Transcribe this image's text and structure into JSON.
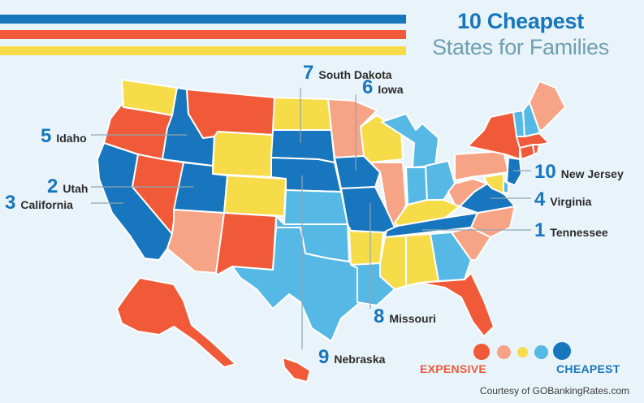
{
  "colors": {
    "background": "#e9f4fa",
    "stripe_blue": "#1776bd",
    "stripe_red": "#f05a39",
    "stripe_yellow": "#f7dc4a",
    "title_blue": "#1776bd",
    "subtitle_gray": "#6f9fb3",
    "text_blue": "#1776bd",
    "text_dark": "#2b2b2b",
    "leader_line": "#8fa6b2",
    "state_border": "#ffffff",
    "expensive_label": "#f05a39",
    "cheapest_label": "#1776bd"
  },
  "header": {
    "title": "10 Cheapest",
    "subtitle": "States for Families"
  },
  "scale": [
    {
      "level": "most-expensive",
      "color": "#f05a39"
    },
    {
      "level": "expensive",
      "color": "#f7a386"
    },
    {
      "level": "average",
      "color": "#f7dc4a"
    },
    {
      "level": "cheap",
      "color": "#55b8e5"
    },
    {
      "level": "cheapest",
      "color": "#1776bd"
    }
  ],
  "legend": {
    "expensive_label": "EXPENSIVE",
    "cheapest_label": "CHEAPEST"
  },
  "rankings": [
    {
      "rank": "1",
      "state": "Tennessee"
    },
    {
      "rank": "2",
      "state": "Utah"
    },
    {
      "rank": "3",
      "state": "California"
    },
    {
      "rank": "4",
      "state": "Virginia"
    },
    {
      "rank": "5",
      "state": "Idaho"
    },
    {
      "rank": "6",
      "state": "Iowa"
    },
    {
      "rank": "7",
      "state": "South Dakota"
    },
    {
      "rank": "8",
      "state": "Missouri"
    },
    {
      "rank": "9",
      "state": "Nebraska"
    },
    {
      "rank": "10",
      "state": "New Jersey"
    }
  ],
  "states": [
    {
      "id": "WA",
      "level": "average"
    },
    {
      "id": "OR",
      "level": "most-expensive"
    },
    {
      "id": "CA",
      "level": "cheapest"
    },
    {
      "id": "ID",
      "level": "cheapest"
    },
    {
      "id": "NV",
      "level": "most-expensive"
    },
    {
      "id": "MT",
      "level": "most-expensive"
    },
    {
      "id": "WY",
      "level": "average"
    },
    {
      "id": "UT",
      "level": "cheapest"
    },
    {
      "id": "AZ",
      "level": "expensive"
    },
    {
      "id": "CO",
      "level": "average"
    },
    {
      "id": "NM",
      "level": "most-expensive"
    },
    {
      "id": "ND",
      "level": "average"
    },
    {
      "id": "SD",
      "level": "cheapest"
    },
    {
      "id": "NE",
      "level": "cheapest"
    },
    {
      "id": "KS",
      "level": "cheap"
    },
    {
      "id": "OK",
      "level": "cheap"
    },
    {
      "id": "TX",
      "level": "cheap"
    },
    {
      "id": "MN",
      "level": "expensive"
    },
    {
      "id": "IA",
      "level": "cheapest"
    },
    {
      "id": "MO",
      "level": "cheapest"
    },
    {
      "id": "AR",
      "level": "average"
    },
    {
      "id": "LA",
      "level": "cheap"
    },
    {
      "id": "WI",
      "level": "average"
    },
    {
      "id": "IL",
      "level": "expensive"
    },
    {
      "id": "MI",
      "level": "cheap"
    },
    {
      "id": "IN",
      "level": "cheap"
    },
    {
      "id": "OH",
      "level": "cheap"
    },
    {
      "id": "KY",
      "level": "average"
    },
    {
      "id": "TN",
      "level": "cheapest"
    },
    {
      "id": "MS",
      "level": "average"
    },
    {
      "id": "AL",
      "level": "average"
    },
    {
      "id": "GA",
      "level": "cheap"
    },
    {
      "id": "FL",
      "level": "most-expensive"
    },
    {
      "id": "SC",
      "level": "expensive"
    },
    {
      "id": "NC",
      "level": "expensive"
    },
    {
      "id": "VA",
      "level": "cheapest"
    },
    {
      "id": "WV",
      "level": "expensive"
    },
    {
      "id": "PA",
      "level": "expensive"
    },
    {
      "id": "NY",
      "level": "most-expensive"
    },
    {
      "id": "NJ",
      "level": "cheapest"
    },
    {
      "id": "DE",
      "level": "cheap"
    },
    {
      "id": "MD",
      "level": "average"
    },
    {
      "id": "CT",
      "level": "most-expensive"
    },
    {
      "id": "RI",
      "level": "most-expensive"
    },
    {
      "id": "MA",
      "level": "most-expensive"
    },
    {
      "id": "VT",
      "level": "cheap"
    },
    {
      "id": "NH",
      "level": "cheap"
    },
    {
      "id": "ME",
      "level": "expensive"
    },
    {
      "id": "AK",
      "level": "most-expensive"
    },
    {
      "id": "HI",
      "level": "most-expensive"
    }
  ],
  "credit": "Courtesy of GOBankingRates.com"
}
